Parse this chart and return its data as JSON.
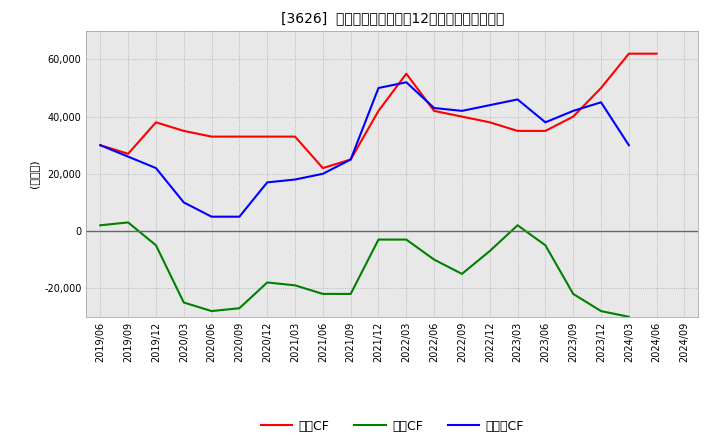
{
  "title": "[3626]  キャッシュフローの12か月移動合計の推移",
  "ylabel": "(百万円)",
  "ylim": [
    -30000,
    70000
  ],
  "yticks": [
    -20000,
    0,
    20000,
    40000,
    60000
  ],
  "dates": [
    "2019/06",
    "2019/09",
    "2019/12",
    "2020/03",
    "2020/06",
    "2020/09",
    "2020/12",
    "2021/03",
    "2021/06",
    "2021/09",
    "2021/12",
    "2022/03",
    "2022/06",
    "2022/09",
    "2022/12",
    "2023/03",
    "2023/06",
    "2023/09",
    "2023/12",
    "2024/03",
    "2024/06",
    "2024/09"
  ],
  "eigyo_cf": [
    30000,
    27000,
    38000,
    35000,
    33000,
    33000,
    33000,
    33000,
    22000,
    25000,
    42000,
    55000,
    42000,
    40000,
    38000,
    35000,
    35000,
    40000,
    50000,
    62000,
    62000,
    null
  ],
  "toshi_cf": [
    2000,
    3000,
    -5000,
    -25000,
    -28000,
    -27000,
    -18000,
    -19000,
    -22000,
    -22000,
    -3000,
    -3000,
    -10000,
    -15000,
    -7000,
    2000,
    -5000,
    -22000,
    -28000,
    -30000,
    null,
    null
  ],
  "free_cf": [
    30000,
    26000,
    22000,
    10000,
    5000,
    5000,
    17000,
    18000,
    20000,
    25000,
    50000,
    52000,
    43000,
    42000,
    44000,
    46000,
    38000,
    42000,
    45000,
    30000,
    null,
    null
  ],
  "eigyo_color": "#ff0000",
  "toshi_color": "#008000",
  "free_color": "#0000ff",
  "legend_labels": [
    "営業CF",
    "投資CF",
    "フリーCF"
  ],
  "plot_bg_color": "#e8e8e8",
  "bg_color": "#ffffff",
  "grid_color": "#aaaaaa",
  "zero_line_color": "#666666"
}
